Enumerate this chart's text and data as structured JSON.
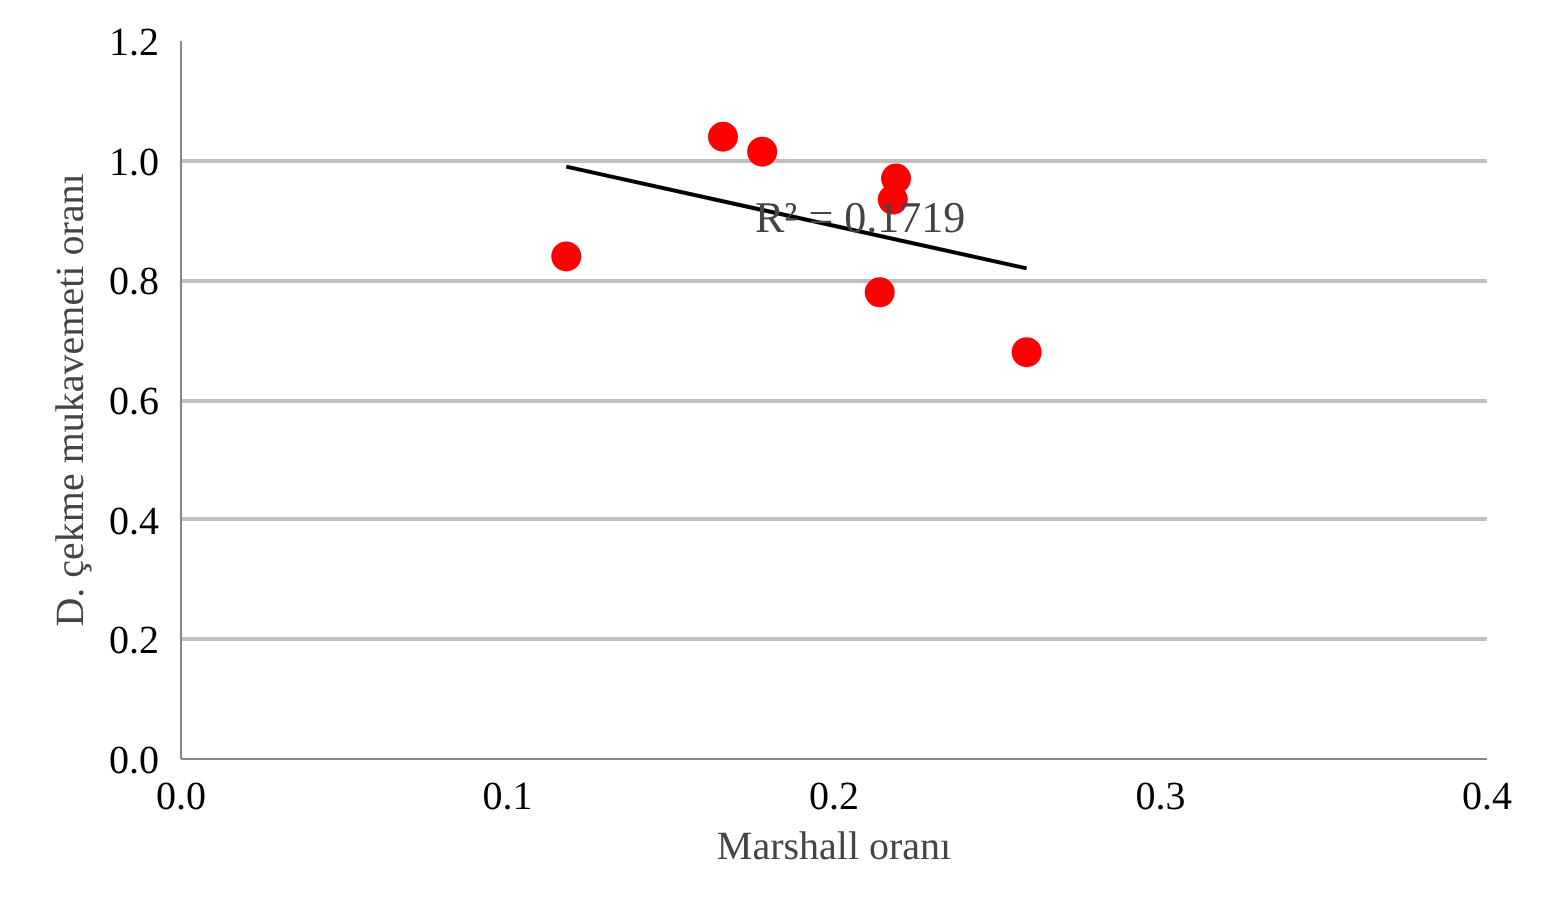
{
  "chart_data": {
    "type": "scatter",
    "xlabel": "Marshall oranı",
    "ylabel": "D. çekme mukavemeti oranı",
    "series": [
      {
        "marker": "circle",
        "color": "#ff0000",
        "x": [
          0.118,
          0.166,
          0.178,
          0.219,
          0.218,
          0.214,
          0.259
        ],
        "values": [
          0.84,
          1.04,
          1.015,
          0.97,
          0.935,
          0.78,
          0.68
        ]
      },
      {
        "type": "line",
        "color": "#000000",
        "x": [
          0.118,
          0.259
        ],
        "values": [
          0.99,
          0.82
        ]
      }
    ],
    "annotations": [
      "R² = 0.1719"
    ],
    "xlim": [
      0.0,
      0.4
    ],
    "xticks": [
      {
        "value": 0,
        "label": "0.0"
      },
      0.1,
      0.2,
      0.3,
      0.4
    ],
    "ylim": [
      0.0,
      1.2
    ],
    "yticks": [
      {
        "value": 0,
        "label": "0.0"
      },
      0.2,
      0.4,
      0.6,
      0.8,
      {
        "value": 1,
        "label": "1.0"
      },
      1.2
    ],
    "grid": "y"
  }
}
